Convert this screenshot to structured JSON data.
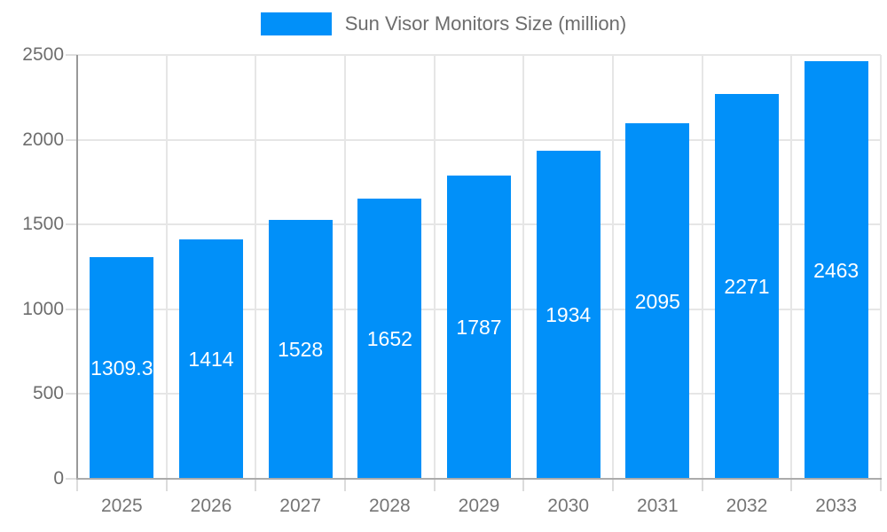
{
  "chart_data": {
    "type": "bar",
    "title": "Sun Visor Monitors Size (million)",
    "categories": [
      "2025",
      "2026",
      "2027",
      "2028",
      "2029",
      "2030",
      "2031",
      "2032",
      "2033"
    ],
    "values": [
      1309.3,
      1414,
      1528,
      1652,
      1787,
      1934,
      2095,
      2271,
      2463
    ],
    "value_labels": [
      "1309.3",
      "1414",
      "1528",
      "1652",
      "1787",
      "1934",
      "2095",
      "2271",
      "2463"
    ],
    "xlabel": "",
    "ylabel": "",
    "ylim": [
      0,
      2500
    ],
    "yticks": [
      0,
      500,
      1000,
      1500,
      2000,
      2500
    ],
    "ytick_labels": [
      "0",
      "500",
      "1000",
      "1500",
      "2000",
      "2500"
    ],
    "grid": true,
    "legend_position": "top-center",
    "bar_color": "#0190f9",
    "grid_color": "#e6e6e6",
    "axis_color": "#a0a0a0",
    "label_color": "#6d6d6d",
    "value_label_color": "#ffffff"
  }
}
